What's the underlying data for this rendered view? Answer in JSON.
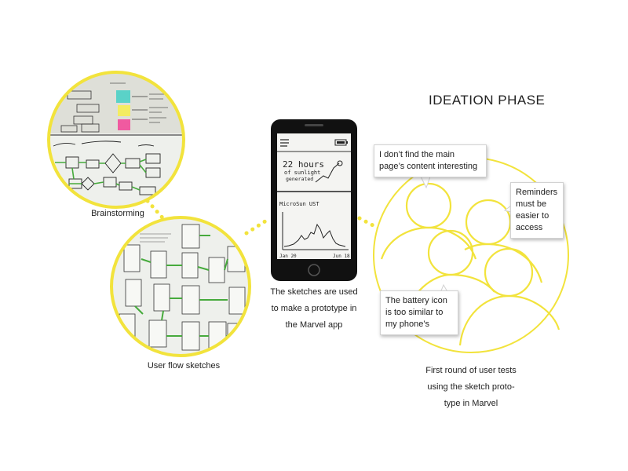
{
  "header": {
    "title": "IDEATION  PHASE"
  },
  "brainstorming": {
    "caption": "Brainstorming"
  },
  "user_flow": {
    "caption": "User flow sketches"
  },
  "prototype": {
    "caption_lines": [
      "The sketches are used",
      "to make a prototype in",
      "the Marvel app"
    ],
    "screen_headline_lines": [
      "22 hours",
      "of sunlight",
      "generated"
    ],
    "screen_chart_label": "MicroSun UST",
    "screen_x_start": "Jan 20",
    "screen_x_end": "Jun 18",
    "icons": [
      "menu-icon",
      "battery-icon"
    ]
  },
  "user_tests": {
    "caption_lines": [
      "First round of user tests",
      "using the sketch proto-",
      "type in Marvel"
    ],
    "feedback": [
      {
        "text": "I don’t find the main page’s content interesting"
      },
      {
        "text": "Reminders must be easier to access"
      },
      {
        "text": "The battery icon is too similar to my phone’s"
      }
    ]
  },
  "colors": {
    "accent": "#f2e33c",
    "phone": "#111111",
    "sticky_pink": "#f05aa0",
    "sticky_teal": "#5ad2c8",
    "sticky_yellow": "#f3ec62",
    "arrow_green": "#46aa3c"
  }
}
